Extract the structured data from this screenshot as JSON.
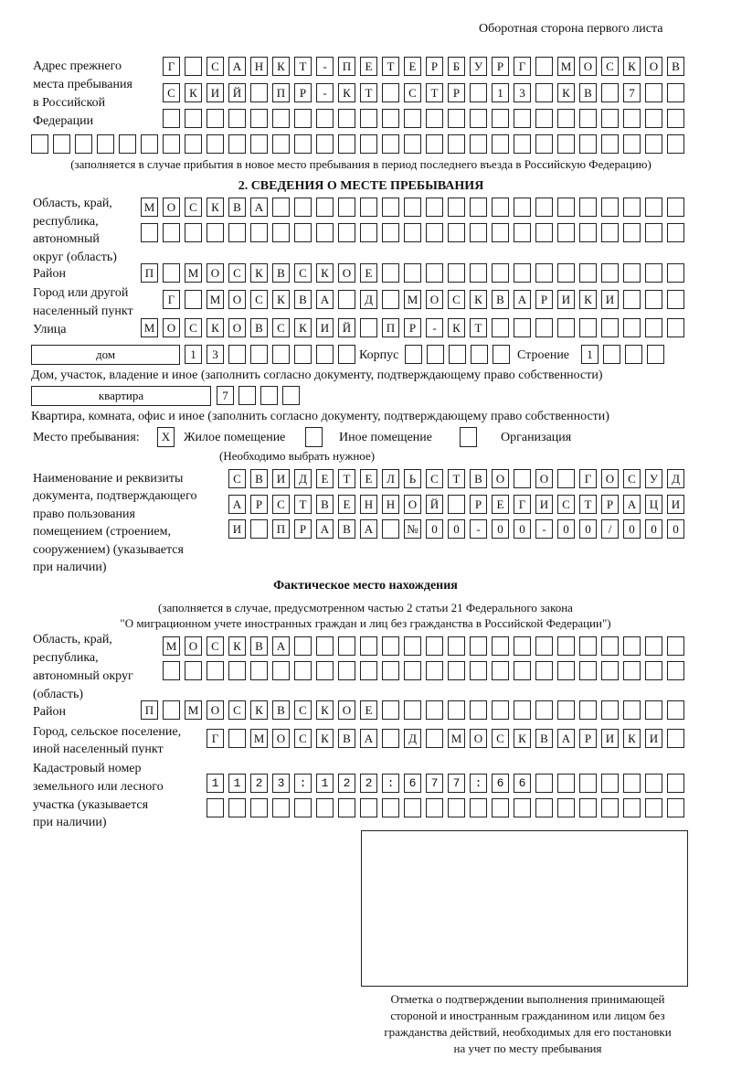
{
  "header": "Оборотная сторона первого листа",
  "prev_address": {
    "label": [
      "Адрес прежнего",
      "места пребывания",
      "в Российской",
      "Федерации"
    ],
    "rows": [
      "Г САНКТ-ПЕТЕРБУРГ МОСКОВ",
      "СКИЙ ПР-КТ СТР 13 КВ 7",
      "",
      ""
    ],
    "note": "(заполняется в случае прибытия в новое место пребывания в период последнего въезда в Российскую Федерацию)"
  },
  "section2": {
    "title": "2. СВЕДЕНИЯ О МЕСТЕ ПРЕБЫВАНИЯ",
    "region_label": [
      "Область, край,",
      "республика,",
      "автономный",
      "округ (область)"
    ],
    "region_rows": [
      "МОСКВА",
      ""
    ],
    "district_label": "Район",
    "district": "П МОСКВСКОЕ",
    "city_label": [
      "Город или другой",
      "населенный пункт"
    ],
    "city": "Г МОСКВА Д МОСКВАРИКИ",
    "street_label": "Улица",
    "street": "МОСКОВСКИЙ ПР-КТ",
    "house_type": "дом",
    "house": "13",
    "korpus_label": "Корпус",
    "korpus": "",
    "building_label": "Строение",
    "building": "1",
    "house_note": "Дом, участок, владение и иное (заполнить согласно документу, подтверждающему право собственности)",
    "flat_type": "квартира",
    "flat": "7",
    "flat_note": "Квартира, комната, офис и иное (заполнить согласно документу, подтверждающему право собственности)",
    "stay_label": "Место пребывания:",
    "stay_options": [
      {
        "label": "Жилое помещение",
        "mark": "X"
      },
      {
        "label": "Иное помещение",
        "mark": ""
      },
      {
        "label": "Организация",
        "mark": ""
      }
    ],
    "stay_note": "(Необходимо выбрать нужное)",
    "doc_label": [
      "Наименование и реквизиты",
      "документа, подтверждающего",
      "право пользования",
      "помещением (строением,",
      "сооружением) (указывается",
      "при наличии)"
    ],
    "doc_rows": [
      "СВИДЕТЕЛЬСТВО О ГОСУД",
      "АРСТВЕННОЙ РЕГИСТРАЦИ",
      "И ПРАВА №00-00-00/000"
    ]
  },
  "actual": {
    "title": "Фактическое место нахождения",
    "note": [
      "(заполняется в случае, предусмотренном частью 2 статьи 21 Федерального закона",
      "\"О миграционном учете иностранных граждан и лиц без гражданства в Российской Федерации\")"
    ],
    "region_label": [
      "Область, край,",
      "республика,",
      "автономный округ",
      "(область)"
    ],
    "region_rows": [
      "МОСКВА",
      ""
    ],
    "district_label": "Район",
    "district": "П МОСКВСКОЕ",
    "city_label": [
      "Город, сельское поселение,",
      "иной населенный пункт"
    ],
    "city": "Г МОСКВА Д МОСКВАРИКИ",
    "cadastral_label": [
      "Кадастровый номер",
      "земельного или лесного",
      "участка (указывается",
      "при наличии)"
    ],
    "cadastral_rows": [
      "1123:122:677:66",
      ""
    ]
  },
  "stamp_caption": [
    "Отметка о подтверждении выполнения принимающей",
    "стороной и иностранным гражданином или лицом без",
    "гражданства действий, необходимых для его постановки",
    "на учет по месту пребывания"
  ]
}
